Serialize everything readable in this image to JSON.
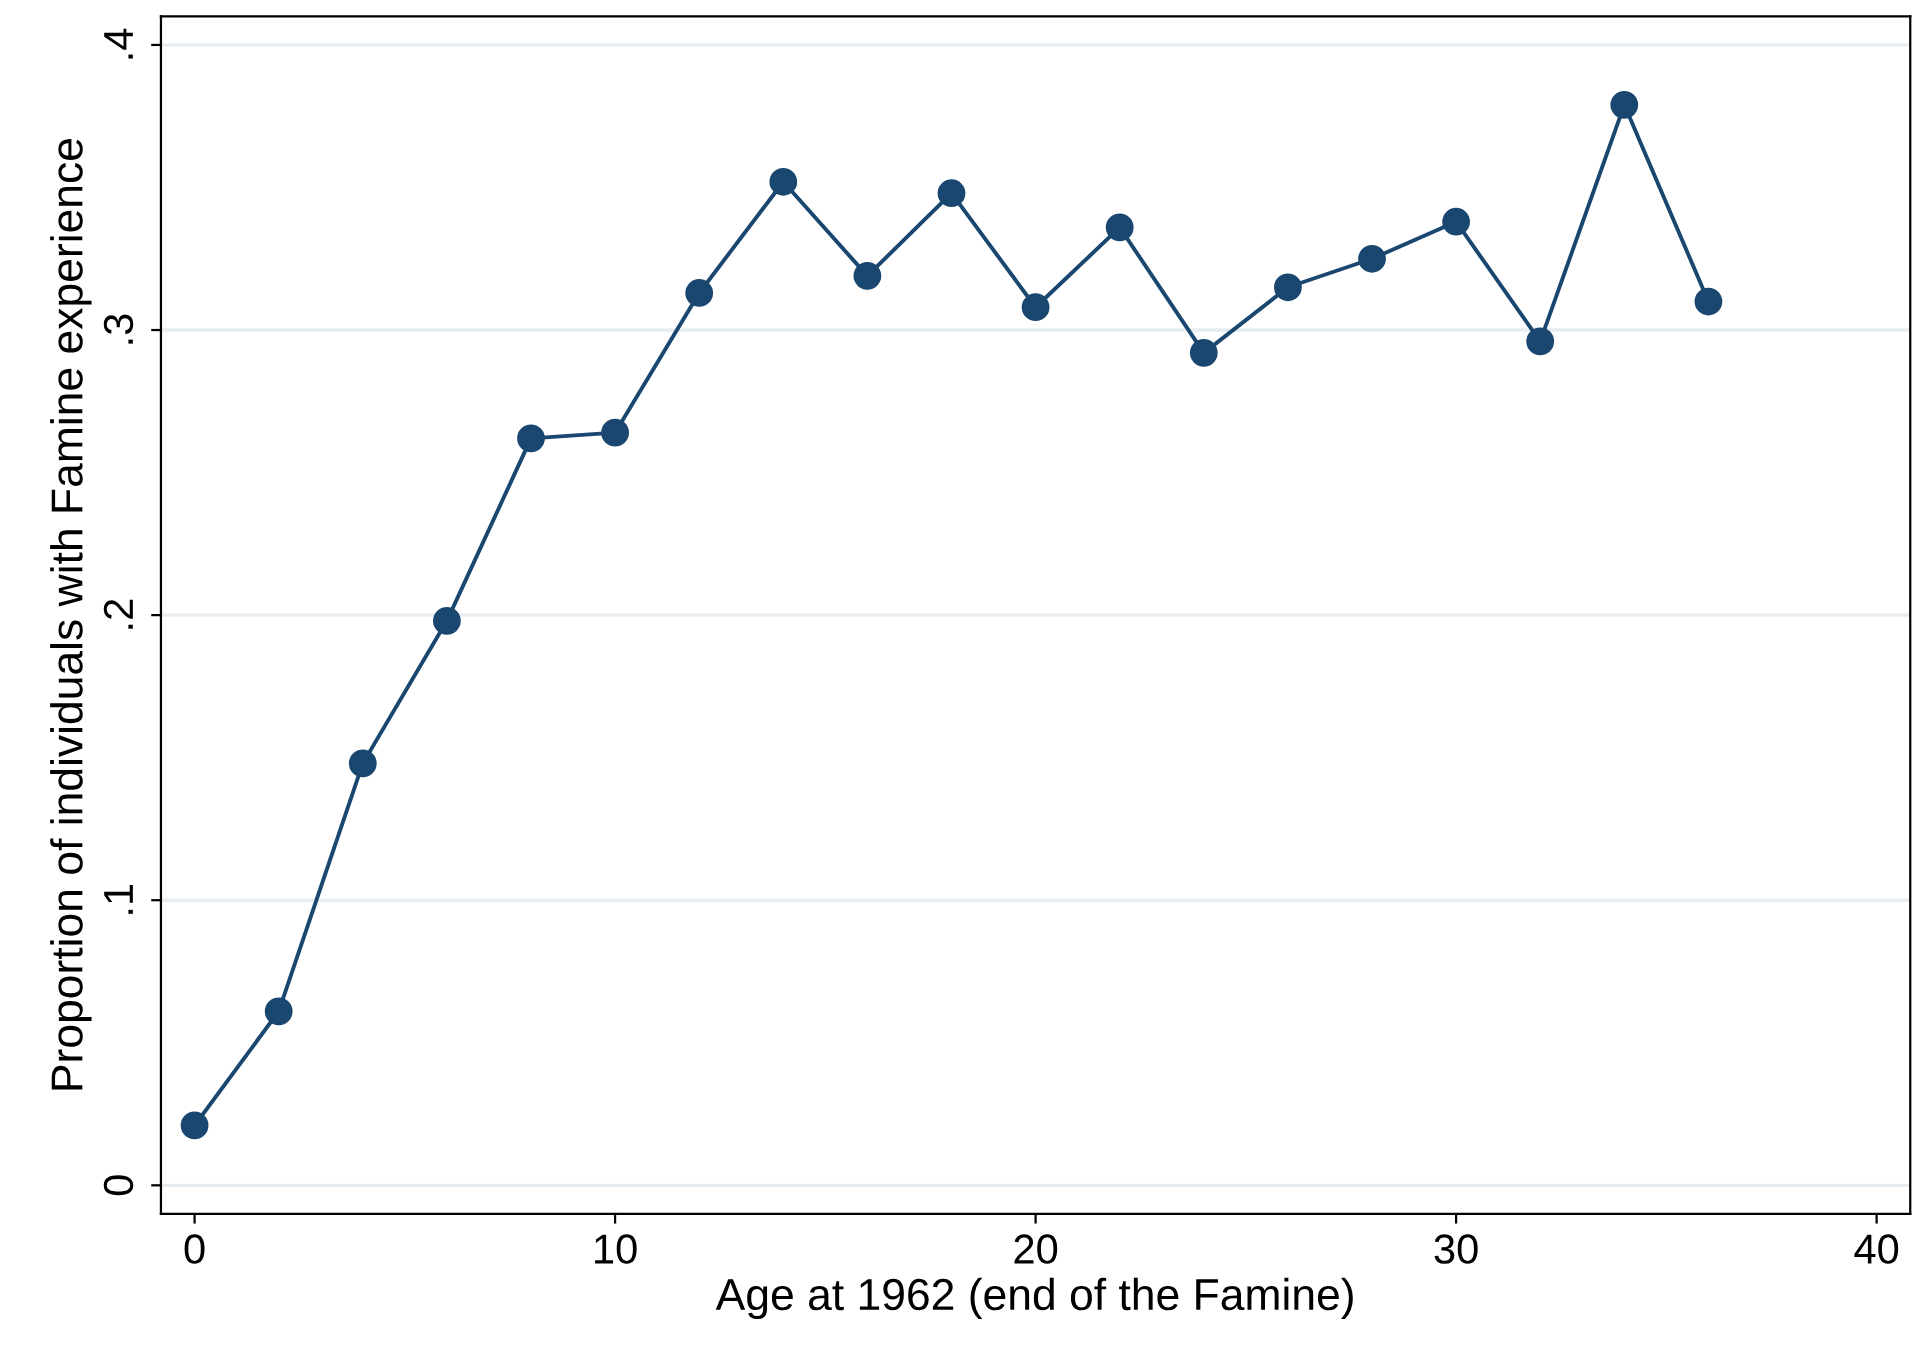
{
  "chart_data": {
    "type": "line",
    "xlabel": "Age at 1962 (end of the Famine)",
    "ylabel": "Proportion of individuals with Famine experience",
    "x": [
      0,
      2,
      4,
      6,
      8,
      10,
      12,
      14,
      16,
      18,
      20,
      22,
      24,
      26,
      28,
      30,
      32,
      34,
      36
    ],
    "series": [
      {
        "color": "#1a476f",
        "values": [
          0.021,
          0.061,
          0.148,
          0.198,
          0.262,
          0.264,
          0.313,
          0.352,
          0.319,
          0.348,
          0.308,
          0.336,
          0.292,
          0.315,
          0.325,
          0.338,
          0.296,
          0.379,
          0.31
        ]
      }
    ],
    "xlim": [
      -0.8,
      40.8
    ],
    "ylim": [
      -0.01,
      0.41
    ],
    "xticks": [
      0,
      10,
      20,
      30,
      40
    ],
    "yticks": [
      {
        "value": 0,
        "label": "0"
      },
      {
        "value": 0.1,
        "label": ".1"
      },
      {
        "value": 0.2,
        "label": ".2"
      },
      {
        "value": 0.3,
        "label": ".3"
      },
      {
        "value": 0.4,
        "label": ".4"
      }
    ],
    "grid": "y",
    "marker": "circle",
    "line_style": "solid",
    "legend": false
  }
}
